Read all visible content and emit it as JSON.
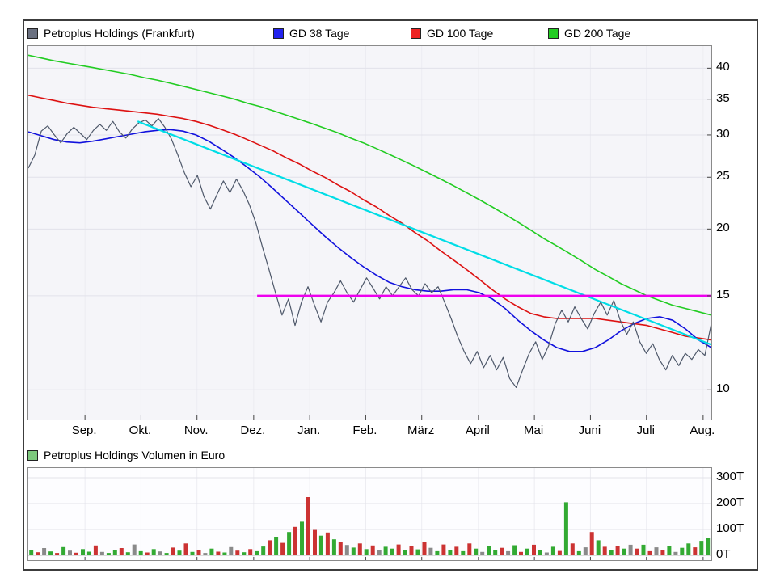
{
  "legend_main": {
    "items": [
      {
        "label": "Petroplus Holdings (Frankfurt)",
        "color": "#6a7080"
      },
      {
        "label": "GD 38 Tage",
        "color": "#2222ee"
      },
      {
        "label": "GD 100 Tage",
        "color": "#ee2222"
      },
      {
        "label": "GD 200 Tage",
        "color": "#22cc22"
      }
    ]
  },
  "volume_legend": {
    "label": "Petroplus Holdings Volumen in Euro",
    "color": "#7dc87d"
  },
  "axes": {
    "price_ticks": [
      40,
      35,
      30,
      25,
      20,
      15,
      10
    ],
    "months": [
      "Sep.",
      "Okt.",
      "Nov.",
      "Dez.",
      "Jan.",
      "Feb.",
      "März",
      "April",
      "Mai",
      "Juni",
      "Juli",
      "Aug."
    ],
    "volume_ticks": [
      "300T",
      "200T",
      "100T",
      "0T"
    ]
  },
  "chart_data": [
    {
      "type": "line",
      "title": "Petroplus Holdings (Frankfurt)",
      "yscale": "log",
      "ylim": [
        8.8,
        44
      ],
      "month_positions": [
        0.083,
        0.165,
        0.247,
        0.33,
        0.412,
        0.494,
        0.576,
        0.659,
        0.741,
        0.823,
        0.905,
        0.988
      ],
      "series": [
        {
          "key": "price",
          "name": "Petroplus Holdings (Frankfurt)",
          "color": "#4e586a",
          "width": 1.2,
          "values": [
            26.0,
            27.5,
            30.5,
            31.2,
            30.0,
            29.0,
            30.2,
            31.0,
            30.2,
            29.4,
            30.6,
            31.4,
            30.6,
            31.8,
            30.4,
            29.6,
            30.8,
            31.6,
            32.0,
            31.2,
            32.2,
            31.0,
            29.5,
            27.5,
            25.5,
            24.0,
            25.2,
            23.0,
            21.8,
            23.2,
            24.6,
            23.4,
            24.8,
            23.6,
            22.2,
            20.5,
            18.5,
            16.8,
            15.2,
            13.8,
            14.8,
            13.2,
            14.6,
            15.6,
            14.4,
            13.4,
            14.6,
            15.2,
            16.0,
            15.2,
            14.6,
            15.4,
            16.2,
            15.5,
            14.8,
            15.6,
            15.0,
            15.6,
            16.2,
            15.4,
            15.0,
            15.8,
            15.2,
            15.6,
            14.6,
            13.6,
            12.6,
            11.8,
            11.2,
            11.8,
            11.0,
            11.6,
            10.9,
            11.5,
            10.5,
            10.1,
            10.9,
            11.7,
            12.3,
            11.4,
            12.1,
            13.3,
            14.1,
            13.4,
            14.3,
            13.6,
            13.0,
            13.9,
            14.6,
            13.8,
            14.7,
            13.5,
            12.7,
            13.4,
            12.3,
            11.7,
            12.2,
            11.4,
            10.9,
            11.6,
            11.1,
            11.7,
            11.4,
            11.9,
            11.6,
            13.3
          ]
        },
        {
          "key": "gd38",
          "name": "GD 38 Tage",
          "color": "#1111dd",
          "width": 1.6,
          "values": [
            30.4,
            29.9,
            29.4,
            29.1,
            29.0,
            29.2,
            29.5,
            29.8,
            30.1,
            30.4,
            30.6,
            30.7,
            30.5,
            30.0,
            29.2,
            28.2,
            27.2,
            26.1,
            25.0,
            23.8,
            22.6,
            21.5,
            20.4,
            19.4,
            18.5,
            17.7,
            17.0,
            16.4,
            15.9,
            15.6,
            15.4,
            15.3,
            15.3,
            15.4,
            15.4,
            15.2,
            14.8,
            14.2,
            13.5,
            12.9,
            12.4,
            12.0,
            11.8,
            11.8,
            12.0,
            12.4,
            12.9,
            13.3,
            13.6,
            13.7,
            13.5,
            13.0,
            12.4,
            12.0
          ]
        },
        {
          "key": "gd100",
          "name": "GD 100 Tage",
          "color": "#dd1111",
          "width": 1.6,
          "values": [
            35.6,
            35.2,
            34.8,
            34.4,
            34.1,
            33.8,
            33.6,
            33.4,
            33.2,
            33.0,
            32.8,
            32.5,
            32.2,
            31.8,
            31.3,
            30.7,
            30.1,
            29.4,
            28.7,
            28.0,
            27.2,
            26.5,
            25.7,
            25.0,
            24.2,
            23.5,
            22.7,
            22.0,
            21.2,
            20.5,
            19.7,
            19.0,
            18.2,
            17.5,
            16.8,
            16.1,
            15.4,
            14.8,
            14.3,
            13.9,
            13.7,
            13.6,
            13.6,
            13.6,
            13.6,
            13.5,
            13.4,
            13.3,
            13.2,
            13.0,
            12.8,
            12.6,
            12.5,
            12.4
          ]
        },
        {
          "key": "gd200",
          "name": "GD 200 Tage",
          "color": "#22cc22",
          "width": 1.6,
          "values": [
            42.3,
            41.8,
            41.3,
            40.9,
            40.5,
            40.1,
            39.7,
            39.3,
            38.9,
            38.4,
            38.0,
            37.5,
            37.0,
            36.5,
            36.0,
            35.5,
            35.0,
            34.4,
            33.9,
            33.3,
            32.7,
            32.1,
            31.5,
            30.9,
            30.3,
            29.6,
            29.0,
            28.3,
            27.6,
            26.9,
            26.2,
            25.5,
            24.8,
            24.1,
            23.4,
            22.7,
            22.0,
            21.3,
            20.6,
            19.9,
            19.2,
            18.6,
            18.0,
            17.4,
            16.8,
            16.3,
            15.8,
            15.4,
            15.0,
            14.7,
            14.4,
            14.2,
            14.0,
            13.8
          ]
        }
      ],
      "overlays": [
        {
          "key": "trendline",
          "color": "#00dde6",
          "width": 2.2,
          "points": [
            [
              0.16,
              31.8
            ],
            [
              1.0,
              12.15
            ]
          ]
        },
        {
          "key": "horizontal-line",
          "color": "#ee00ee",
          "width": 2.6,
          "points": [
            [
              0.335,
              15
            ],
            [
              1.0,
              15
            ]
          ]
        }
      ]
    },
    {
      "type": "bar",
      "title": "Petroplus Holdings Volumen in Euro",
      "ylim": [
        0,
        330
      ],
      "tick_values": [
        300,
        200,
        100,
        0
      ],
      "unit": "T",
      "values": [
        20,
        12,
        28,
        15,
        9,
        32,
        18,
        10,
        24,
        14,
        38,
        13,
        9,
        20,
        28,
        12,
        42,
        16,
        11,
        24,
        15,
        9,
        30,
        18,
        46,
        13,
        20,
        9,
        26,
        14,
        11,
        32,
        18,
        12,
        24,
        16,
        34,
        58,
        72,
        48,
        90,
        110,
        130,
        225,
        98,
        76,
        88,
        62,
        52,
        40,
        30,
        46,
        24,
        38,
        20,
        33,
        26,
        42,
        19,
        36,
        23,
        52,
        29,
        16,
        42,
        21,
        33,
        16,
        46,
        26,
        13,
        36,
        21,
        29,
        16,
        39,
        13,
        26,
        41,
        19,
        11,
        33,
        17,
        205,
        46,
        16,
        31,
        90,
        58,
        33,
        21,
        35,
        26,
        41,
        26,
        41,
        16,
        31,
        21,
        36,
        13,
        29,
        46,
        31,
        56,
        68
      ],
      "colors": "grngrgnrggrnggrgngrgngrgrgrngrgnrgrggrgrgrgrrgrgrngrgrnggrgrgrngrgrgrgnggrngrgrgngrgrgnrgrgrgnrgrnrgnggrgg",
      "color_map": {
        "g": "#33aa33",
        "r": "#cc3333",
        "n": "#8a8a8a"
      }
    }
  ]
}
